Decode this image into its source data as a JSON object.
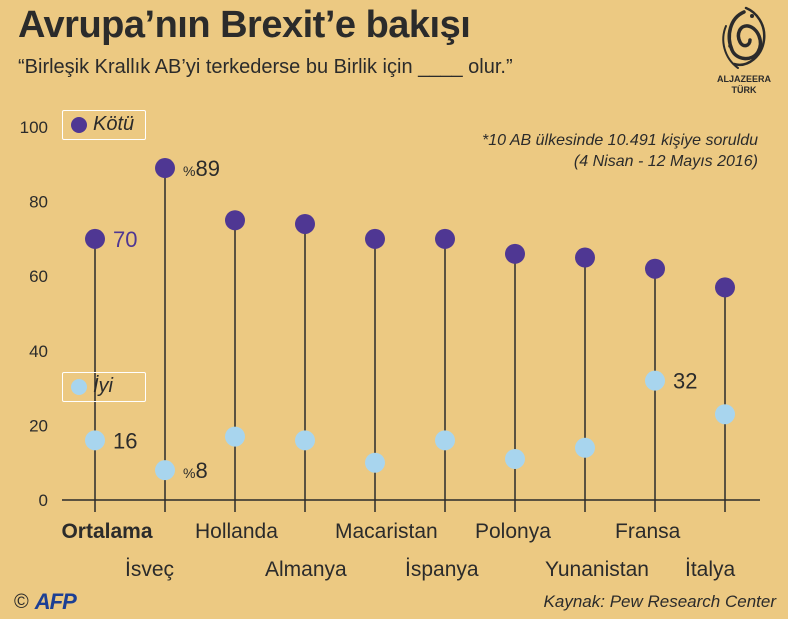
{
  "header": {
    "title": "Avrupa’nın Brexit’e bakışı",
    "subtitle": "“Birleşik Krallık AB’yi terkederse bu Birlik için ____  olur.”"
  },
  "logo": {
    "name": "aljazeera-logo",
    "line1": "ALJAZEERA",
    "line2": "TÜRK"
  },
  "note": {
    "line1": "*10 AB ülkesinde 10.491 kişiye soruldu",
    "line2": "(4 Nisan  - 12 Mayıs  2016)"
  },
  "legend": {
    "bad": "Kötü",
    "good": "İyi"
  },
  "footer": {
    "copyright": "©",
    "agency": "AFP",
    "source": "Kaynak: Pew Research Center"
  },
  "colors": {
    "bad": "#4f3793",
    "good": "#a8d5ee",
    "background": "#ecc982",
    "stem": "#2b2b2b"
  },
  "chart_data": {
    "type": "dot",
    "title": "Avrupa’nın Brexit’e bakışı",
    "ylim": [
      0,
      100
    ],
    "yticks": [
      0,
      20,
      40,
      60,
      80,
      100
    ],
    "grid": false,
    "categories": [
      "Ortalama",
      "İsveç",
      "Hollanda",
      "Almanya",
      "Macaristan",
      "İspanya",
      "Polonya",
      "Yunanistan",
      "Fransa",
      "İtalya"
    ],
    "series": [
      {
        "name": "Kötü",
        "values": [
          70,
          89,
          75,
          74,
          70,
          70,
          66,
          65,
          62,
          57
        ]
      },
      {
        "name": "İyi",
        "values": [
          16,
          8,
          17,
          16,
          10,
          16,
          11,
          14,
          32,
          23
        ]
      }
    ],
    "data_labels": [
      {
        "series": 0,
        "index": 0,
        "text": "70"
      },
      {
        "series": 0,
        "index": 1,
        "text": "%89"
      },
      {
        "series": 1,
        "index": 0,
        "text": "16"
      },
      {
        "series": 1,
        "index": 1,
        "text": "%8"
      },
      {
        "series": 1,
        "index": 8,
        "text": "32"
      }
    ]
  }
}
